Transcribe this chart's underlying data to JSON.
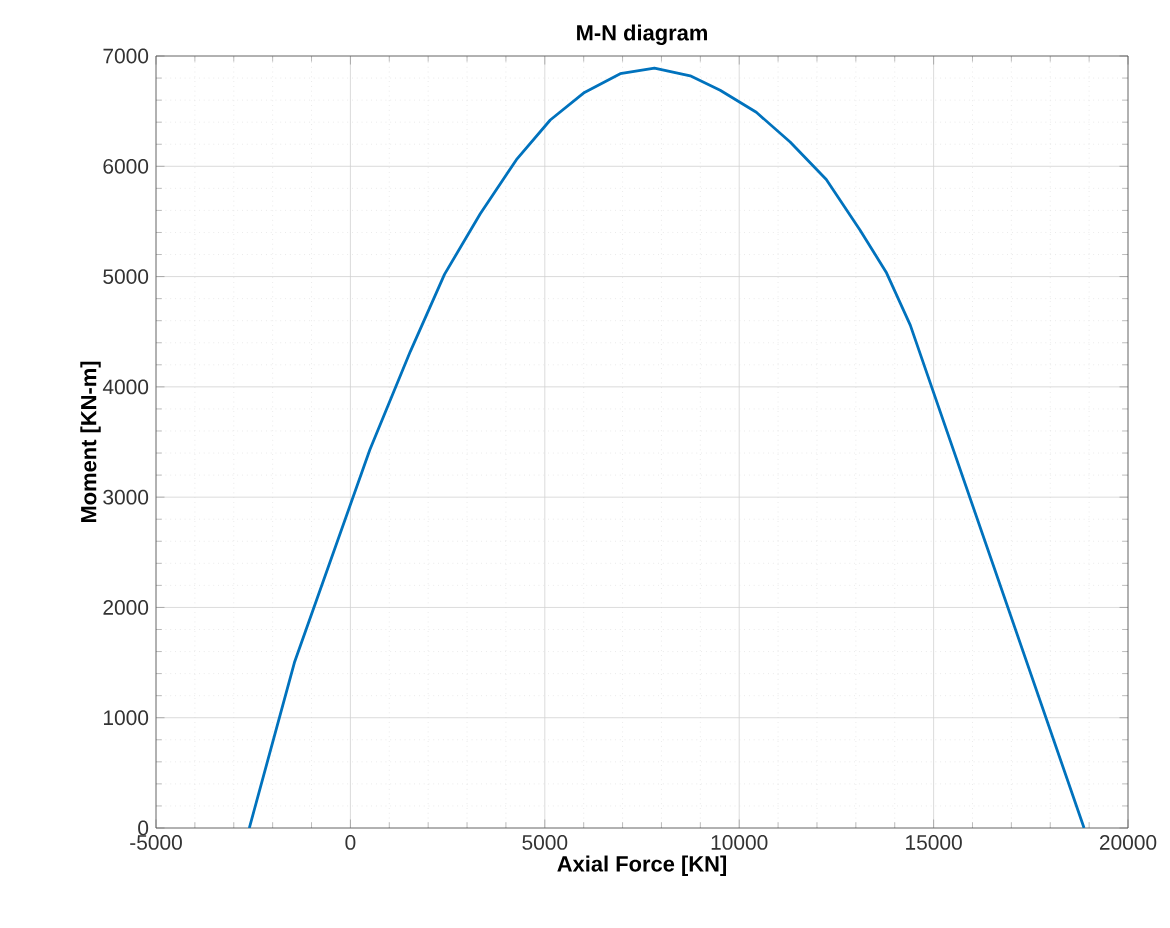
{
  "chart_data": {
    "type": "line",
    "title": "M-N diagram",
    "xlabel": "Axial Force [KN]",
    "ylabel": "Moment [KN-m]",
    "xlim": [
      -5000,
      20000
    ],
    "ylim": [
      0,
      7000
    ],
    "xticks": [
      -5000,
      0,
      5000,
      10000,
      15000,
      20000
    ],
    "yticks": [
      0,
      1000,
      2000,
      3000,
      4000,
      5000,
      6000,
      7000
    ],
    "grid": true,
    "line_style": "solid",
    "marker": "none",
    "series": [
      {
        "color": "#0072bd",
        "x": [
          -2600,
          -1440,
          500,
          1540,
          2420,
          3340,
          4270,
          5140,
          6020,
          6940,
          7820,
          8740,
          9510,
          10440,
          11310,
          12240,
          13110,
          13780,
          14400,
          18870
        ],
        "values": [
          0,
          1500,
          3430,
          4320,
          5020,
          5570,
          6060,
          6420,
          6670,
          6840,
          6890,
          6820,
          6690,
          6490,
          6220,
          5880,
          5420,
          5040,
          4560,
          0
        ]
      }
    ]
  }
}
